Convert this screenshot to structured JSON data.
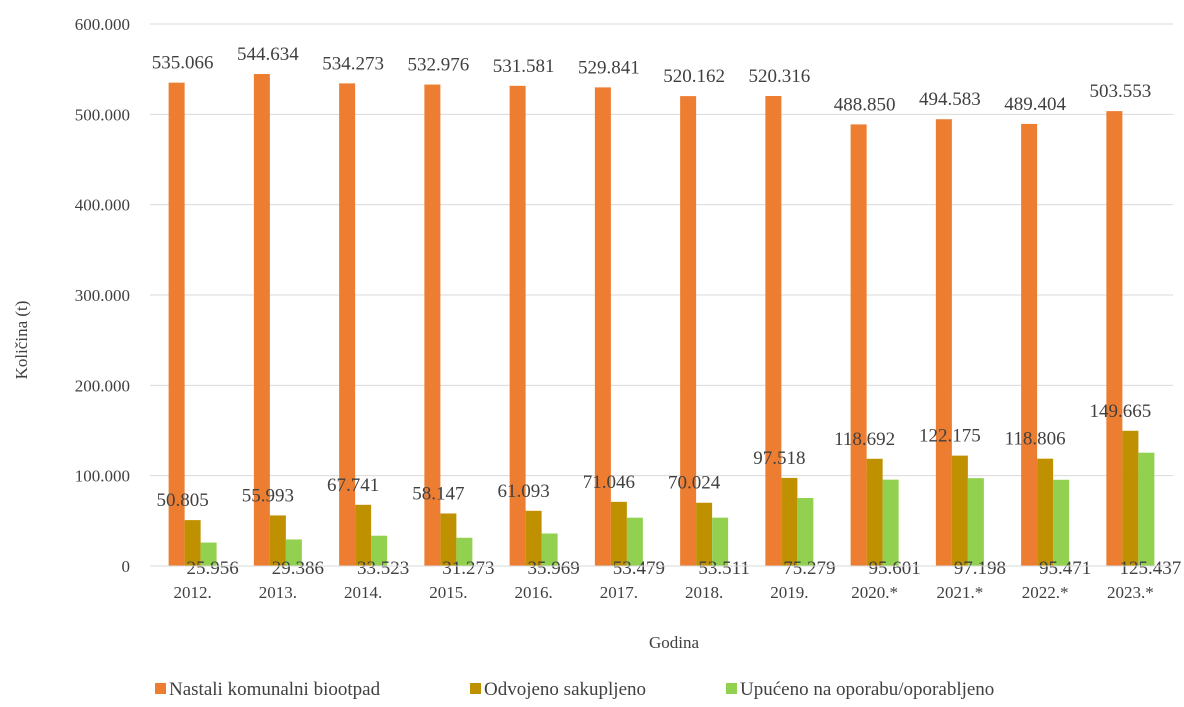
{
  "chart_data": {
    "type": "bar",
    "categories": [
      "2012.",
      "2013.",
      "2014.",
      "2015.",
      "2016.",
      "2017.",
      "2018.",
      "2019.",
      "2020.*",
      "2021.*",
      "2022.*",
      "2023.*"
    ],
    "series": [
      {
        "name": "Nastali komunalni biootpad",
        "color": "#ED7D31",
        "values": [
          535066,
          544634,
          534273,
          532976,
          531581,
          529841,
          520162,
          520316,
          488850,
          494583,
          489404,
          503553
        ],
        "labels": [
          "535.066",
          "544.634",
          "534.273",
          "532.976",
          "531.581",
          "529.841",
          "520.162",
          "520.316",
          "488.850",
          "494.583",
          "489.404",
          "503.553"
        ]
      },
      {
        "name": "Odvojeno sakupljeno",
        "color": "#BF9000",
        "values": [
          50805,
          55993,
          67741,
          58147,
          61093,
          71046,
          70024,
          97518,
          118692,
          122175,
          118806,
          149665
        ],
        "labels": [
          "50.805",
          "55.993",
          "67.741",
          "58.147",
          "61.093",
          "71.046",
          "70.024",
          "97.518",
          "118.692",
          "122.175",
          "118.806",
          "149.665"
        ]
      },
      {
        "name": "Upućeno na oporabu/oporabljeno",
        "color": "#92D050",
        "values": [
          25956,
          29386,
          33523,
          31273,
          35969,
          53479,
          53511,
          75279,
          95601,
          97198,
          95471,
          125437
        ],
        "labels": [
          "25.956",
          "29.386",
          "33.523",
          "31.273",
          "35.969",
          "53.479",
          "53.511",
          "75.279",
          "95.601",
          "97.198",
          "95.471",
          "125.437"
        ]
      }
    ],
    "y_ticks": [
      0,
      100000,
      200000,
      300000,
      400000,
      500000,
      600000
    ],
    "y_tick_labels": [
      "0",
      "100.000",
      "200.000",
      "300.000",
      "400.000",
      "500.000",
      "600.000"
    ],
    "ylim": [
      0,
      600000
    ],
    "xlabel": "Godina",
    "ylabel": "Količina (t)",
    "grid": true,
    "gridline_color": "#D9D9D9",
    "legend_position": "bottom"
  }
}
